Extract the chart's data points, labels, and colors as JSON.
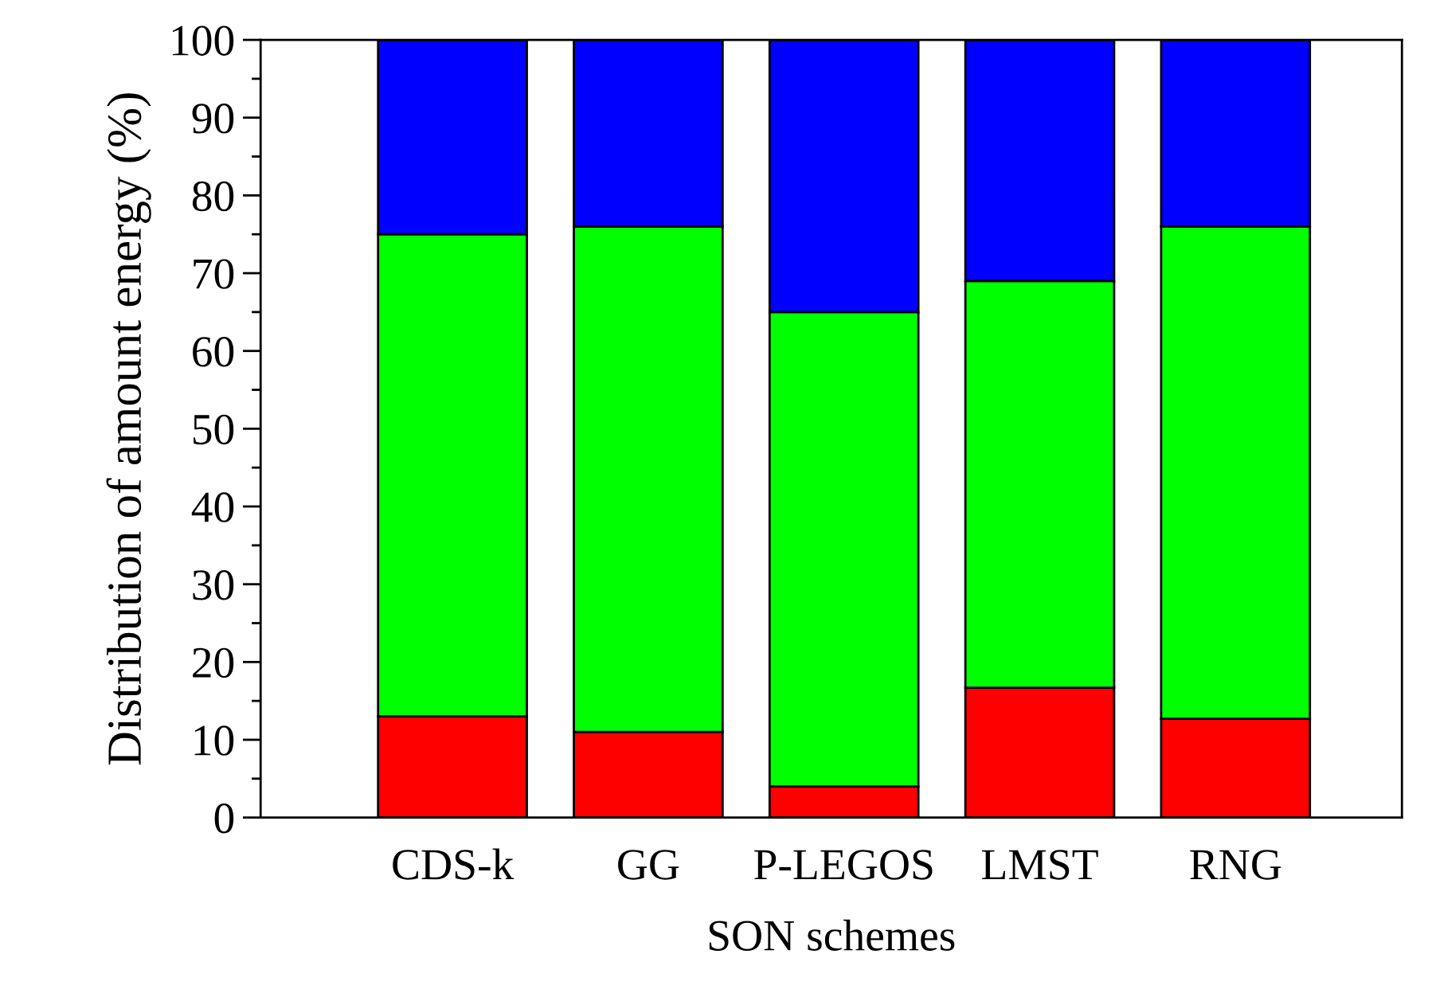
{
  "chart_data": {
    "type": "bar",
    "stacked": true,
    "xlabel": "SON schemes",
    "ylabel": "Distribution of amount energy (%)",
    "categories": [
      "CDS-k",
      "GG",
      "P-LEGOS",
      "LMST",
      "RNG"
    ],
    "series": [
      {
        "color": "#ff0000",
        "values": [
          13,
          11,
          4,
          16.7,
          12.7
        ]
      },
      {
        "color": "#00ff00",
        "values": [
          62,
          65,
          61,
          52.3,
          63.3
        ]
      },
      {
        "color": "#0000ff",
        "values": [
          25,
          24,
          35,
          31,
          24
        ]
      }
    ],
    "ylim": [
      0,
      100
    ],
    "yticks": [
      0,
      10,
      20,
      30,
      40,
      50,
      60,
      70,
      80,
      90,
      100
    ],
    "grid": false,
    "legend": false
  }
}
